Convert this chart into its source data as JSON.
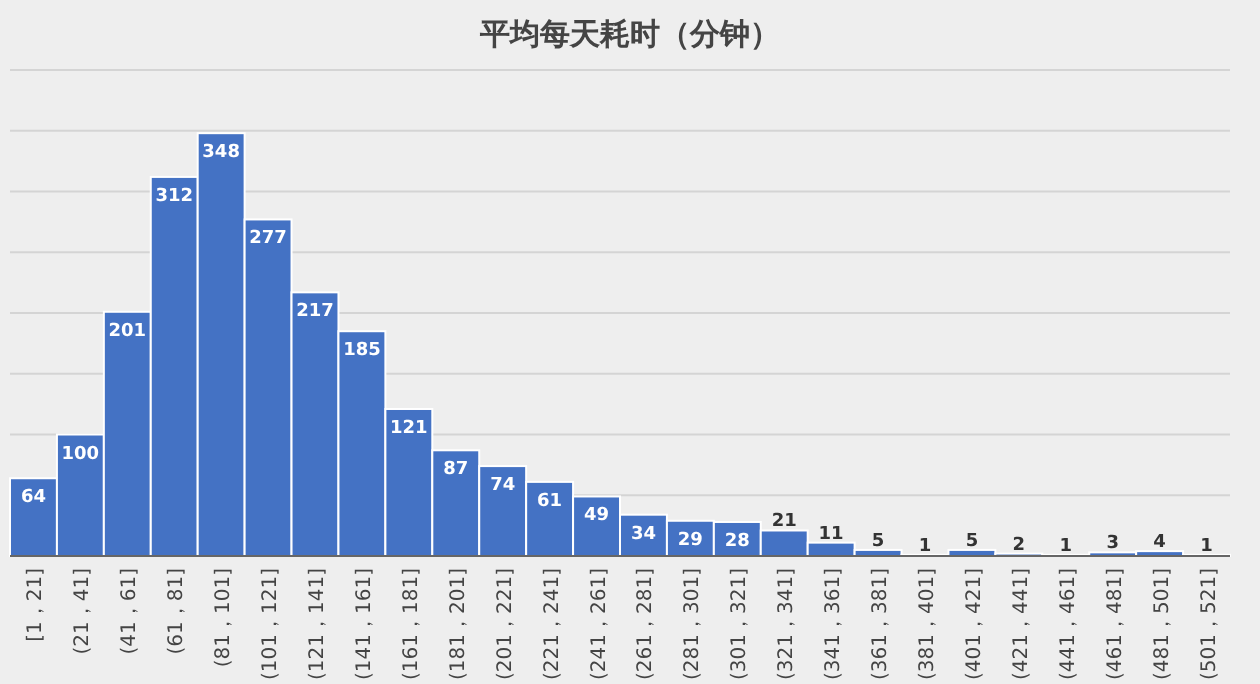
{
  "chart_data": {
    "type": "bar",
    "title": "平均每天耗时（分钟）",
    "categories": [
      "[1，21]",
      "(21，41]",
      "(41，61]",
      "(61，81]",
      "(81，101]",
      "(101，121]",
      "(121，141]",
      "(141，161]",
      "(161，181]",
      "(181，201]",
      "(201，221]",
      "(221，241]",
      "(241，261]",
      "(261，281]",
      "(281，301]",
      "(301，321]",
      "(321，341]",
      "(341，361]",
      "(361，381]",
      "(381，401]",
      "(401，421]",
      "(421，441]",
      "(441，461]",
      "(461，481]",
      "(481，501]",
      "(501，521]"
    ],
    "values": [
      64,
      100,
      201,
      312,
      348,
      277,
      217,
      185,
      121,
      87,
      74,
      61,
      49,
      34,
      29,
      28,
      21,
      11,
      5,
      1,
      5,
      2,
      1,
      3,
      4,
      1
    ],
    "color": "#4472c4",
    "data_labels": true,
    "grid": "y",
    "ylim": [
      0,
      400
    ],
    "yticks": [
      {
        "value": 0,
        "label": null
      },
      {
        "value": 50,
        "label": null
      },
      {
        "value": 100,
        "label": null
      },
      {
        "value": 150,
        "label": null
      },
      {
        "value": 200,
        "label": null
      },
      {
        "value": 250,
        "label": null
      },
      {
        "value": 300,
        "label": null
      },
      {
        "value": 350,
        "label": null
      },
      {
        "value": 400,
        "label": null
      }
    ],
    "tick_labels": "x"
  }
}
